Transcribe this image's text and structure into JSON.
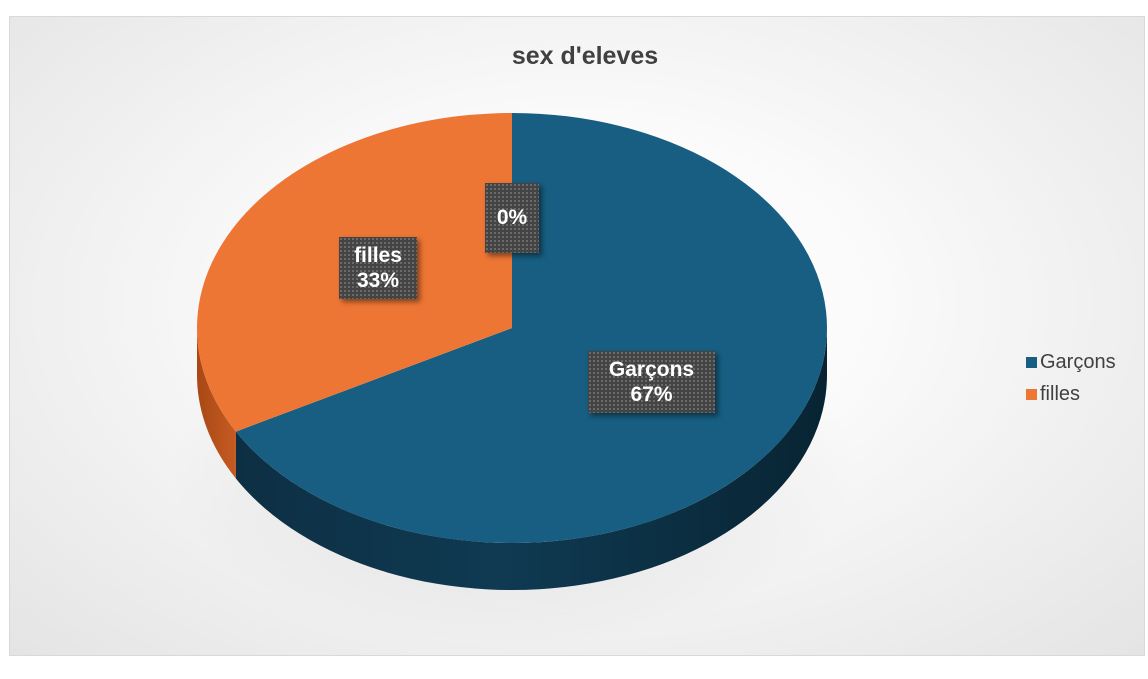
{
  "chart_data": {
    "type": "pie",
    "title": "sex d'eleves",
    "categories": [
      "Garçons",
      "filles",
      ""
    ],
    "values": [
      67,
      33,
      0
    ],
    "data_labels": [
      {
        "name": "Garçons",
        "percent": "67%"
      },
      {
        "name": "filles",
        "percent": "33%"
      },
      {
        "name": "",
        "percent": "0%"
      }
    ],
    "legend": [
      {
        "label": "Garçons",
        "color": "#175e82"
      },
      {
        "label": "filles",
        "color": "#ee7635"
      }
    ],
    "legend_position": "right",
    "colors": {
      "garcons": "#175e82",
      "garcons_side": "#0f3a52",
      "filles": "#ee7635",
      "filles_side": "#b8541e"
    }
  }
}
